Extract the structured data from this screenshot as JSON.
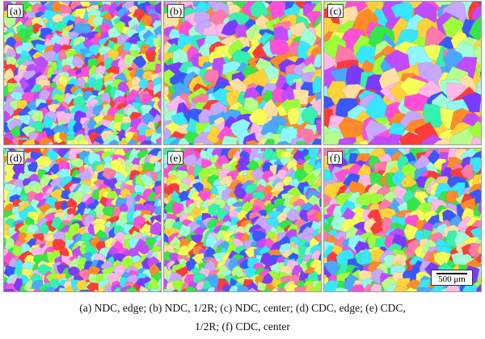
{
  "panels": [
    {
      "label": "(a)",
      "grain_size": "fine"
    },
    {
      "label": "(b)",
      "grain_size": "medium"
    },
    {
      "label": "(c)",
      "grain_size": "coarse"
    },
    {
      "label": "(d)",
      "grain_size": "fine"
    },
    {
      "label": "(e)",
      "grain_size": "fine"
    },
    {
      "label": "(f)",
      "grain_size": "medium-fine"
    }
  ],
  "scale_bar": {
    "label": "500 μm"
  },
  "caption": {
    "line1": "(a) NDC, edge; (b) NDC, 1/2R; (c) NDC, center; (d) CDC, edge; (e) CDC,",
    "line2": "1/2R; (f) CDC, center"
  },
  "colors": {
    "palette": [
      "#ff3b3b",
      "#ff8a2a",
      "#ffd23a",
      "#f6ff5a",
      "#9cff3a",
      "#35e64a",
      "#36f0b0",
      "#39e6ff",
      "#4aa8ff",
      "#3a58ff",
      "#7a3bff",
      "#c04bff",
      "#ff4fd8",
      "#ff7aa8",
      "#b6ff8c",
      "#8cf7ff",
      "#c6a8ff",
      "#ffb8e8",
      "#ffe0a0",
      "#a0ffd8"
    ]
  }
}
